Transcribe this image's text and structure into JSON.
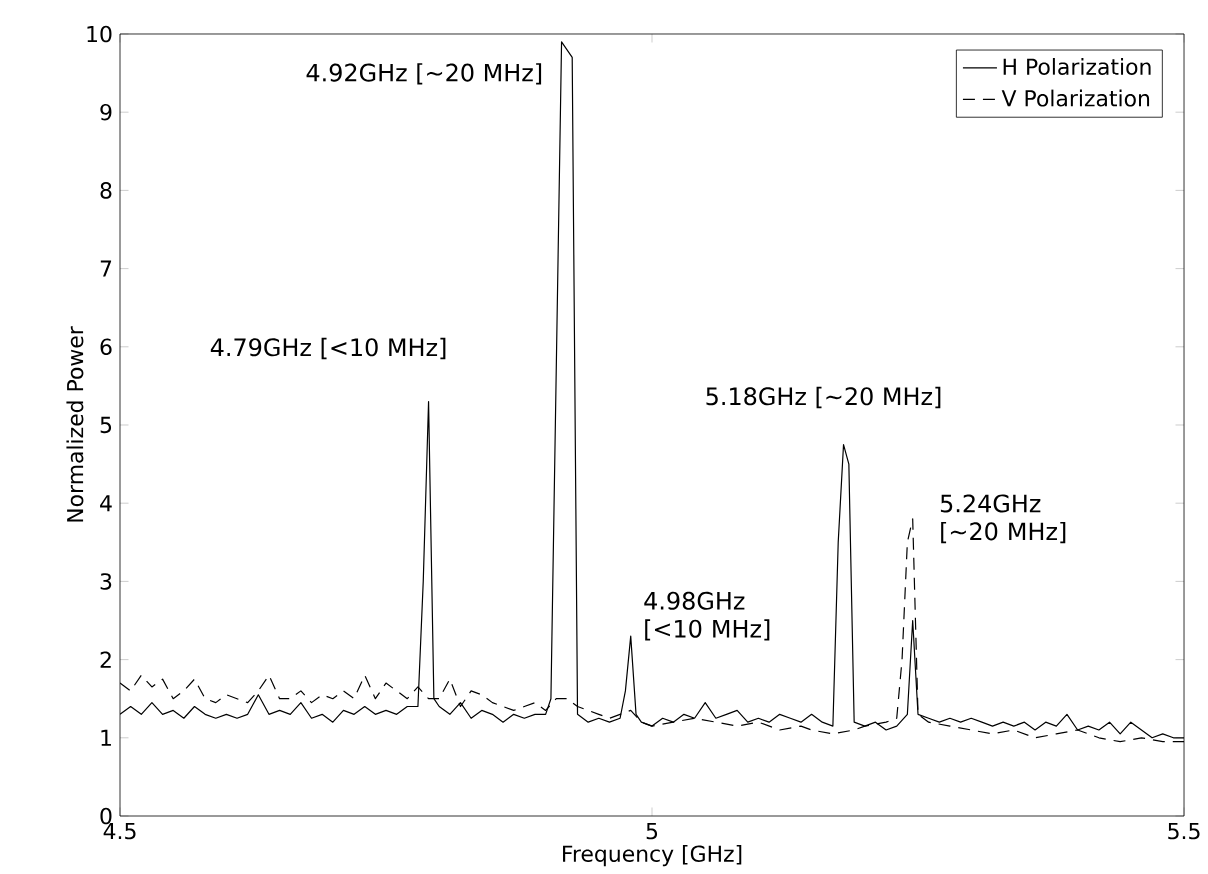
{
  "chart_data": {
    "type": "line",
    "xlabel": "Frequency [GHz]",
    "ylabel": "Normalized Power",
    "xlim": [
      4.5,
      5.5
    ],
    "xticks": [
      4.5,
      5,
      5.5
    ],
    "ylim": [
      0,
      10
    ],
    "yticks": [
      0,
      1,
      2,
      3,
      4,
      5,
      6,
      7,
      8,
      9,
      10
    ],
    "legend": "top right",
    "grid": false,
    "marker": "none",
    "series": [
      {
        "name": "H Polarization",
        "color": "#000000",
        "line_style": "solid",
        "x": [
          4.5,
          4.51,
          4.52,
          4.53,
          4.54,
          4.55,
          4.56,
          4.57,
          4.58,
          4.59,
          4.6,
          4.61,
          4.62,
          4.63,
          4.64,
          4.65,
          4.66,
          4.67,
          4.68,
          4.69,
          4.7,
          4.71,
          4.72,
          4.73,
          4.74,
          4.75,
          4.76,
          4.77,
          4.78,
          4.785,
          4.79,
          4.795,
          4.8,
          4.81,
          4.82,
          4.83,
          4.84,
          4.85,
          4.86,
          4.87,
          4.88,
          4.89,
          4.9,
          4.905,
          4.915,
          4.92,
          4.925,
          4.93,
          4.94,
          4.95,
          4.96,
          4.97,
          4.975,
          4.98,
          4.985,
          4.99,
          5.0,
          5.01,
          5.02,
          5.03,
          5.04,
          5.05,
          5.06,
          5.07,
          5.08,
          5.09,
          5.1,
          5.11,
          5.12,
          5.13,
          5.14,
          5.15,
          5.16,
          5.17,
          5.175,
          5.18,
          5.185,
          5.19,
          5.2,
          5.21,
          5.22,
          5.23,
          5.24,
          5.245,
          5.25,
          5.26,
          5.27,
          5.28,
          5.29,
          5.3,
          5.31,
          5.32,
          5.33,
          5.34,
          5.35,
          5.36,
          5.37,
          5.38,
          5.39,
          5.4,
          5.41,
          5.42,
          5.43,
          5.44,
          5.45,
          5.46,
          5.47,
          5.48,
          5.49,
          5.5
        ],
        "values": [
          1.3,
          1.4,
          1.3,
          1.45,
          1.3,
          1.35,
          1.25,
          1.4,
          1.3,
          1.25,
          1.3,
          1.25,
          1.3,
          1.55,
          1.3,
          1.35,
          1.3,
          1.45,
          1.25,
          1.3,
          1.2,
          1.35,
          1.3,
          1.4,
          1.3,
          1.35,
          1.3,
          1.4,
          1.4,
          3.0,
          5.3,
          1.5,
          1.4,
          1.3,
          1.45,
          1.25,
          1.35,
          1.3,
          1.2,
          1.3,
          1.25,
          1.3,
          1.3,
          1.5,
          9.9,
          9.8,
          9.7,
          1.3,
          1.2,
          1.25,
          1.2,
          1.25,
          1.6,
          2.3,
          1.3,
          1.2,
          1.15,
          1.25,
          1.2,
          1.3,
          1.25,
          1.45,
          1.25,
          1.3,
          1.35,
          1.2,
          1.25,
          1.2,
          1.3,
          1.25,
          1.2,
          1.3,
          1.2,
          1.15,
          3.5,
          4.75,
          4.5,
          1.2,
          1.15,
          1.2,
          1.1,
          1.15,
          1.3,
          2.5,
          1.3,
          1.25,
          1.2,
          1.25,
          1.2,
          1.25,
          1.2,
          1.15,
          1.2,
          1.15,
          1.2,
          1.1,
          1.2,
          1.15,
          1.3,
          1.1,
          1.15,
          1.1,
          1.2,
          1.05,
          1.2,
          1.1,
          1.0,
          1.05,
          1.0,
          1.0
        ]
      },
      {
        "name": "V Polarization",
        "color": "#000000",
        "line_style": "dashed",
        "x": [
          4.5,
          4.51,
          4.52,
          4.53,
          4.54,
          4.55,
          4.56,
          4.57,
          4.58,
          4.59,
          4.6,
          4.61,
          4.62,
          4.63,
          4.64,
          4.65,
          4.66,
          4.67,
          4.68,
          4.69,
          4.7,
          4.71,
          4.72,
          4.73,
          4.74,
          4.75,
          4.76,
          4.77,
          4.78,
          4.79,
          4.8,
          4.81,
          4.82,
          4.83,
          4.84,
          4.85,
          4.86,
          4.87,
          4.88,
          4.89,
          4.9,
          4.91,
          4.92,
          4.93,
          4.94,
          4.95,
          4.96,
          4.97,
          4.98,
          4.99,
          5.0,
          5.02,
          5.04,
          5.06,
          5.08,
          5.1,
          5.12,
          5.14,
          5.15,
          5.17,
          5.19,
          5.2,
          5.22,
          5.23,
          5.235,
          5.24,
          5.245,
          5.25,
          5.26,
          5.28,
          5.3,
          5.32,
          5.34,
          5.36,
          5.38,
          5.4,
          5.42,
          5.44,
          5.46,
          5.48,
          5.5
        ],
        "values": [
          1.7,
          1.6,
          1.8,
          1.65,
          1.75,
          1.5,
          1.6,
          1.75,
          1.5,
          1.45,
          1.55,
          1.5,
          1.45,
          1.6,
          1.8,
          1.5,
          1.5,
          1.6,
          1.45,
          1.55,
          1.5,
          1.6,
          1.5,
          1.8,
          1.5,
          1.7,
          1.6,
          1.5,
          1.65,
          1.5,
          1.5,
          1.75,
          1.4,
          1.6,
          1.55,
          1.45,
          1.4,
          1.35,
          1.4,
          1.45,
          1.35,
          1.5,
          1.5,
          1.4,
          1.35,
          1.3,
          1.25,
          1.3,
          1.35,
          1.2,
          1.15,
          1.2,
          1.25,
          1.2,
          1.15,
          1.2,
          1.1,
          1.15,
          1.1,
          1.05,
          1.1,
          1.15,
          1.2,
          1.25,
          2.0,
          3.5,
          3.8,
          1.3,
          1.2,
          1.15,
          1.1,
          1.05,
          1.1,
          1.0,
          1.05,
          1.1,
          1.0,
          0.95,
          1.0,
          0.95,
          0.95
        ]
      }
    ],
    "annotations": [
      {
        "text": "4.79GHz [<10 MHz]",
        "x": 4.79,
        "y": 5.3
      },
      {
        "text": "4.92GHz [~20 MHz]",
        "x": 4.915,
        "y": 9.9
      },
      {
        "text": "4.98GHz [<10 MHz]",
        "x": 4.98,
        "y": 2.3
      },
      {
        "text": "5.18GHz [~20 MHz]",
        "x": 5.18,
        "y": 4.75
      },
      {
        "text": "5.24GHz [~20 MHz]",
        "x": 5.245,
        "y": 3.8
      }
    ]
  }
}
